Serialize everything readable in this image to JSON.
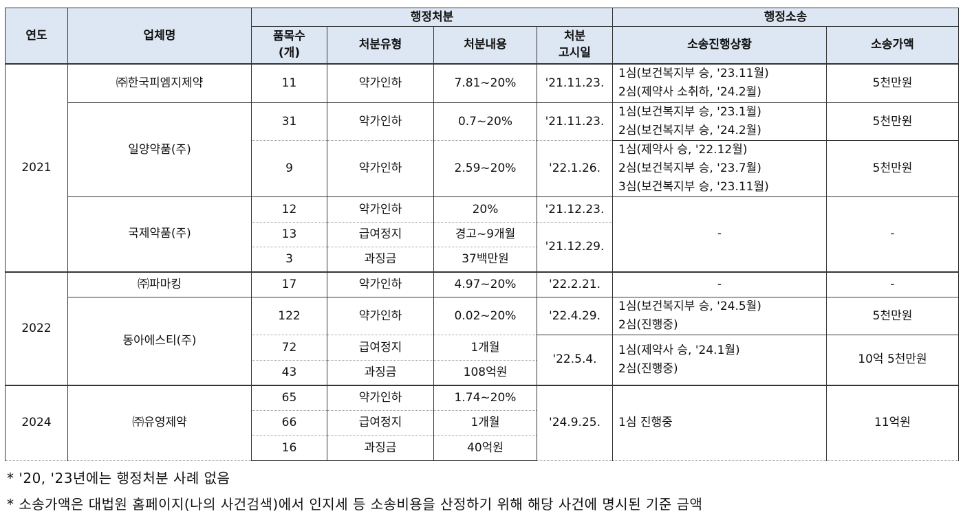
{
  "header": {
    "year": "연도",
    "company": "업체명",
    "admin_disposition": "행정처분",
    "admin_lawsuit": "행정소송",
    "item_count": "품목수",
    "item_unit": "(개)",
    "disposition_type": "처분유형",
    "disposition_detail": "처분내용",
    "notice_date_1": "처분",
    "notice_date_2": "고시일",
    "lawsuit_status": "소송진행상황",
    "lawsuit_value": "소송가액"
  },
  "years": {
    "y2021": "2021",
    "y2022": "2022",
    "y2024": "2024"
  },
  "companies": {
    "c1": "㈜한국피엠지제약",
    "c2": "일양약품(주)",
    "c3": "국제약품(주)",
    "c4": "㈜파마킹",
    "c5": "동아에스티(주)",
    "c6": "㈜유영제약"
  },
  "rows": [
    {
      "count": "11",
      "type": "약가인하",
      "detail": "7.81~20%",
      "date": "'21.11.23.",
      "status1": "1심(보건복지부 승, '23.11월)",
      "status2": "2심(제약사 소취하, '24.2월)",
      "value": "5천만원"
    },
    {
      "count": "31",
      "type": "약가인하",
      "detail": "0.7~20%",
      "date": "'21.11.23.",
      "status1": "1심(보건복지부 승, '23.1월)",
      "status2": "2심(보건복지부 승, '24.2월)",
      "value": "5천만원"
    },
    {
      "count": "9",
      "type": "약가인하",
      "detail": "2.59~20%",
      "date": "'22.1.26.",
      "status1": "1심(제약사 승, '22.12월)",
      "status2": "2심(보건복지부 승, '23.7월)",
      "status3": "3심(보건복지부 승, '23.11월)",
      "value": "5천만원"
    },
    {
      "count": "12",
      "type": "약가인하",
      "detail": "20%",
      "date": "'21.12.23."
    },
    {
      "count": "13",
      "type": "급여정지",
      "detail": "경고~9개월",
      "date": "'21.12.29.",
      "status": "-",
      "value": "-"
    },
    {
      "count": "3",
      "type": "과징금",
      "detail": "37백만원"
    },
    {
      "count": "17",
      "type": "약가인하",
      "detail": "4.97~20%",
      "date": "'22.2.21.",
      "status": "-",
      "value": "-"
    },
    {
      "count": "122",
      "type": "약가인하",
      "detail": "0.02~20%",
      "date": "'22.4.29.",
      "status1": "1심(보건복지부 승, '24.5월)",
      "status2": "2심(진행중)",
      "value": "5천만원"
    },
    {
      "count": "72",
      "type": "급여정지",
      "detail": "1개월",
      "date": "'22.5.4.",
      "status1": "1심(제약사 승, '24.1월)",
      "status2": "2심(진행중)",
      "value": "10억 5천만원"
    },
    {
      "count": "43",
      "type": "과징금",
      "detail": "108억원"
    },
    {
      "count": "65",
      "type": "약가인하",
      "detail": "1.74~20%",
      "date": "'24.9.25.",
      "status": "1심 진행중",
      "value": "11억원"
    },
    {
      "count": "66",
      "type": "급여정지",
      "detail": "1개월"
    },
    {
      "count": "16",
      "type": "과징금",
      "detail": "40억원"
    }
  ],
  "notes": {
    "note1": "* '20, '23년에는 행정처분 사례 없음",
    "note2": "* 소송가액은 대법원 홈페이지(나의 사건검색)에서 인지세 등 소송비용을 산정하기 위해 해당 사건에 명시된 기준 금액"
  }
}
